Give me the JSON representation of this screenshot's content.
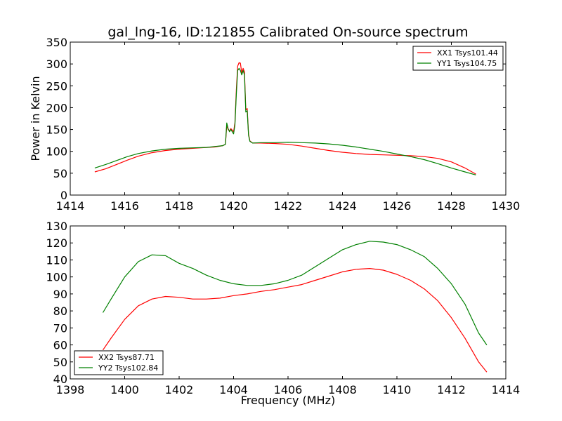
{
  "title": "gal_lng-16, ID:121855 Calibrated On-source spectrum",
  "chart_data": [
    {
      "type": "line",
      "title": "gal_lng-16, ID:121855 Calibrated On-source spectrum",
      "xlabel": "",
      "ylabel": "Power in Kelvin",
      "xlim": [
        1414,
        1430
      ],
      "ylim": [
        0,
        350
      ],
      "xticks": [
        "1414",
        "1416",
        "1418",
        "1420",
        "1422",
        "1424",
        "1426",
        "1428",
        "1430"
      ],
      "yticks": [
        "0",
        "50",
        "100",
        "150",
        "200",
        "250",
        "300",
        "350"
      ],
      "legend_position": "top-right",
      "grid": false,
      "series": [
        {
          "name": "XX1 Tsys101.44",
          "color": "#ff0000",
          "points": [
            [
              1414.9,
              53
            ],
            [
              1415.3,
              60
            ],
            [
              1415.7,
              70
            ],
            [
              1416.1,
              80
            ],
            [
              1416.5,
              89
            ],
            [
              1417.0,
              97
            ],
            [
              1417.5,
              102
            ],
            [
              1418.0,
              105
            ],
            [
              1418.5,
              107
            ],
            [
              1419.0,
              109
            ],
            [
              1419.3,
              110
            ],
            [
              1419.6,
              113
            ],
            [
              1419.7,
              116
            ],
            [
              1419.75,
              160
            ],
            [
              1419.8,
              150
            ],
            [
              1419.85,
              147
            ],
            [
              1419.9,
              152
            ],
            [
              1420.0,
              145
            ],
            [
              1420.05,
              165
            ],
            [
              1420.1,
              240
            ],
            [
              1420.15,
              295
            ],
            [
              1420.2,
              303
            ],
            [
              1420.25,
              302
            ],
            [
              1420.3,
              280
            ],
            [
              1420.35,
              290
            ],
            [
              1420.4,
              282
            ],
            [
              1420.45,
              195
            ],
            [
              1420.5,
              198
            ],
            [
              1420.55,
              140
            ],
            [
              1420.6,
              124
            ],
            [
              1420.7,
              119
            ],
            [
              1421.0,
              119
            ],
            [
              1421.5,
              118
            ],
            [
              1422.0,
              116
            ],
            [
              1422.5,
              112
            ],
            [
              1423.0,
              107
            ],
            [
              1423.5,
              102
            ],
            [
              1424.0,
              98
            ],
            [
              1424.5,
              95
            ],
            [
              1425.0,
              93
            ],
            [
              1425.5,
              92
            ],
            [
              1426.0,
              91
            ],
            [
              1426.5,
              90
            ],
            [
              1427.0,
              88
            ],
            [
              1427.5,
              84
            ],
            [
              1428.0,
              76
            ],
            [
              1428.5,
              62
            ],
            [
              1428.9,
              48
            ]
          ]
        },
        {
          "name": "YY1 Tsys104.75",
          "color": "#008000",
          "points": [
            [
              1414.9,
              62
            ],
            [
              1415.3,
              70
            ],
            [
              1415.7,
              79
            ],
            [
              1416.1,
              88
            ],
            [
              1416.5,
              95
            ],
            [
              1417.0,
              101
            ],
            [
              1417.5,
              105
            ],
            [
              1418.0,
              107
            ],
            [
              1418.5,
              108
            ],
            [
              1419.0,
              109
            ],
            [
              1419.3,
              111
            ],
            [
              1419.6,
              113
            ],
            [
              1419.7,
              116
            ],
            [
              1419.75,
              165
            ],
            [
              1419.8,
              152
            ],
            [
              1419.85,
              145
            ],
            [
              1419.9,
              150
            ],
            [
              1420.0,
              140
            ],
            [
              1420.05,
              160
            ],
            [
              1420.1,
              230
            ],
            [
              1420.15,
              285
            ],
            [
              1420.2,
              290
            ],
            [
              1420.25,
              285
            ],
            [
              1420.3,
              275
            ],
            [
              1420.35,
              285
            ],
            [
              1420.4,
              275
            ],
            [
              1420.45,
              190
            ],
            [
              1420.5,
              193
            ],
            [
              1420.55,
              137
            ],
            [
              1420.6,
              123
            ],
            [
              1420.7,
              119
            ],
            [
              1421.0,
              120
            ],
            [
              1421.5,
              120
            ],
            [
              1422.0,
              121
            ],
            [
              1422.5,
              120
            ],
            [
              1423.0,
              119
            ],
            [
              1423.5,
              117
            ],
            [
              1424.0,
              114
            ],
            [
              1424.5,
              110
            ],
            [
              1425.0,
              105
            ],
            [
              1425.5,
              100
            ],
            [
              1426.0,
              94
            ],
            [
              1426.5,
              88
            ],
            [
              1427.0,
              81
            ],
            [
              1427.5,
              72
            ],
            [
              1428.0,
              62
            ],
            [
              1428.5,
              53
            ],
            [
              1428.9,
              46
            ]
          ]
        }
      ]
    },
    {
      "type": "line",
      "title": "",
      "xlabel": "Frequency (MHz)",
      "ylabel": "",
      "xlim": [
        1398,
        1414
      ],
      "ylim": [
        40,
        130
      ],
      "xticks": [
        "1398",
        "1400",
        "1402",
        "1404",
        "1406",
        "1408",
        "1410",
        "1412",
        "1414"
      ],
      "yticks": [
        "40",
        "50",
        "60",
        "70",
        "80",
        "90",
        "100",
        "110",
        "120",
        "130"
      ],
      "legend_position": "bottom-left",
      "grid": false,
      "series": [
        {
          "name": "XX2 Tsys87.71",
          "color": "#ff0000",
          "points": [
            [
              1399.2,
              57
            ],
            [
              1399.5,
              64
            ],
            [
              1400.0,
              75
            ],
            [
              1400.5,
              83
            ],
            [
              1401.0,
              87
            ],
            [
              1401.5,
              88.5
            ],
            [
              1402.0,
              88
            ],
            [
              1402.5,
              87
            ],
            [
              1403.0,
              87
            ],
            [
              1403.5,
              87.5
            ],
            [
              1404.0,
              89
            ],
            [
              1404.5,
              90
            ],
            [
              1405.0,
              91.5
            ],
            [
              1405.5,
              92.5
            ],
            [
              1406.0,
              94
            ],
            [
              1406.5,
              95.5
            ],
            [
              1407.0,
              98
            ],
            [
              1407.5,
              100.5
            ],
            [
              1408.0,
              103
            ],
            [
              1408.5,
              104.5
            ],
            [
              1409.0,
              105
            ],
            [
              1409.5,
              104
            ],
            [
              1410.0,
              101.5
            ],
            [
              1410.5,
              98
            ],
            [
              1411.0,
              93
            ],
            [
              1411.5,
              86
            ],
            [
              1412.0,
              76
            ],
            [
              1412.5,
              64
            ],
            [
              1413.0,
              50
            ],
            [
              1413.3,
              44
            ]
          ]
        },
        {
          "name": "YY2 Tsys102.84",
          "color": "#008000",
          "points": [
            [
              1399.2,
              79
            ],
            [
              1399.5,
              87
            ],
            [
              1400.0,
              100
            ],
            [
              1400.5,
              109
            ],
            [
              1401.0,
              113
            ],
            [
              1401.5,
              112.5
            ],
            [
              1402.0,
              108
            ],
            [
              1402.5,
              105
            ],
            [
              1403.0,
              101
            ],
            [
              1403.5,
              98
            ],
            [
              1404.0,
              96
            ],
            [
              1404.5,
              95
            ],
            [
              1405.0,
              95
            ],
            [
              1405.5,
              96
            ],
            [
              1406.0,
              98
            ],
            [
              1406.5,
              101
            ],
            [
              1407.0,
              106
            ],
            [
              1407.5,
              111
            ],
            [
              1408.0,
              116
            ],
            [
              1408.5,
              119
            ],
            [
              1409.0,
              121
            ],
            [
              1409.5,
              120.5
            ],
            [
              1410.0,
              119
            ],
            [
              1410.5,
              116
            ],
            [
              1411.0,
              112
            ],
            [
              1411.5,
              105
            ],
            [
              1412.0,
              96
            ],
            [
              1412.5,
              84
            ],
            [
              1413.0,
              67
            ],
            [
              1413.3,
              60
            ]
          ]
        }
      ]
    }
  ]
}
